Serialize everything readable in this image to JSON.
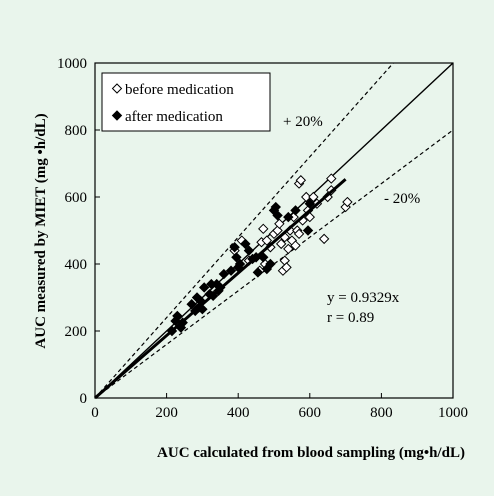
{
  "chart_data": {
    "type": "scatter",
    "xlabel": "AUC calculated from blood sampling (mg•h/dL)",
    "ylabel": "AUC measured by MIET (mg •h/dL)",
    "xlim": [
      0,
      1000
    ],
    "ylim": [
      0,
      1000
    ],
    "x_ticks": [
      "0",
      "200",
      "400",
      "600",
      "800",
      "1000"
    ],
    "y_ticks": [
      "0",
      "200",
      "400",
      "600",
      "800",
      "1000"
    ],
    "grid": false,
    "legend_position": "top-left",
    "series": [
      {
        "name": "before medication",
        "marker": "open-diamond",
        "points": [
          [
            390,
            440
          ],
          [
            410,
            470
          ],
          [
            430,
            410
          ],
          [
            450,
            420
          ],
          [
            460,
            380
          ],
          [
            465,
            465
          ],
          [
            470,
            505
          ],
          [
            475,
            400
          ],
          [
            480,
            470
          ],
          [
            490,
            450
          ],
          [
            500,
            490
          ],
          [
            510,
            500
          ],
          [
            515,
            520
          ],
          [
            520,
            460
          ],
          [
            525,
            380
          ],
          [
            530,
            480
          ],
          [
            530,
            410
          ],
          [
            535,
            390
          ],
          [
            540,
            445
          ],
          [
            545,
            500
          ],
          [
            550,
            470
          ],
          [
            555,
            540
          ],
          [
            560,
            455
          ],
          [
            565,
            500
          ],
          [
            570,
            490
          ],
          [
            570,
            640
          ],
          [
            575,
            650
          ],
          [
            580,
            530
          ],
          [
            590,
            600
          ],
          [
            595,
            560
          ],
          [
            600,
            540
          ],
          [
            610,
            600
          ],
          [
            620,
            580
          ],
          [
            640,
            475
          ],
          [
            650,
            600
          ],
          [
            660,
            620
          ],
          [
            660,
            655
          ],
          [
            700,
            570
          ],
          [
            705,
            585
          ]
        ]
      },
      {
        "name": "after medication",
        "marker": "filled-diamond",
        "points": [
          [
            215,
            200
          ],
          [
            225,
            230
          ],
          [
            230,
            245
          ],
          [
            240,
            210
          ],
          [
            245,
            225
          ],
          [
            270,
            280
          ],
          [
            280,
            260
          ],
          [
            285,
            300
          ],
          [
            290,
            270
          ],
          [
            295,
            290
          ],
          [
            300,
            265
          ],
          [
            305,
            330
          ],
          [
            320,
            310
          ],
          [
            325,
            340
          ],
          [
            330,
            305
          ],
          [
            340,
            340
          ],
          [
            345,
            320
          ],
          [
            350,
            330
          ],
          [
            360,
            370
          ],
          [
            380,
            380
          ],
          [
            390,
            450
          ],
          [
            395,
            420
          ],
          [
            400,
            390
          ],
          [
            405,
            400
          ],
          [
            420,
            460
          ],
          [
            430,
            440
          ],
          [
            440,
            415
          ],
          [
            450,
            420
          ],
          [
            455,
            375
          ],
          [
            470,
            420
          ],
          [
            480,
            385
          ],
          [
            490,
            400
          ],
          [
            500,
            560
          ],
          [
            505,
            570
          ],
          [
            510,
            545
          ],
          [
            540,
            540
          ],
          [
            560,
            560
          ],
          [
            595,
            500
          ],
          [
            600,
            580
          ]
        ]
      }
    ],
    "reference_lines": [
      {
        "label": "",
        "slope": 1.0,
        "style": "solid"
      },
      {
        "label": "+ 20%",
        "slope": 1.2,
        "style": "dashed"
      },
      {
        "label": "- 20%",
        "slope": 0.8,
        "style": "dashed"
      }
    ],
    "regression": {
      "slope": 0.9329,
      "x_range": [
        0,
        700
      ],
      "style": "thick"
    },
    "annotations": {
      "plus20": "+ 20%",
      "minus20": "- 20%",
      "equation": "y = 0.9329x",
      "r_value": "r = 0.89"
    },
    "legend": {
      "before": "before medication",
      "after": "after medication"
    }
  }
}
